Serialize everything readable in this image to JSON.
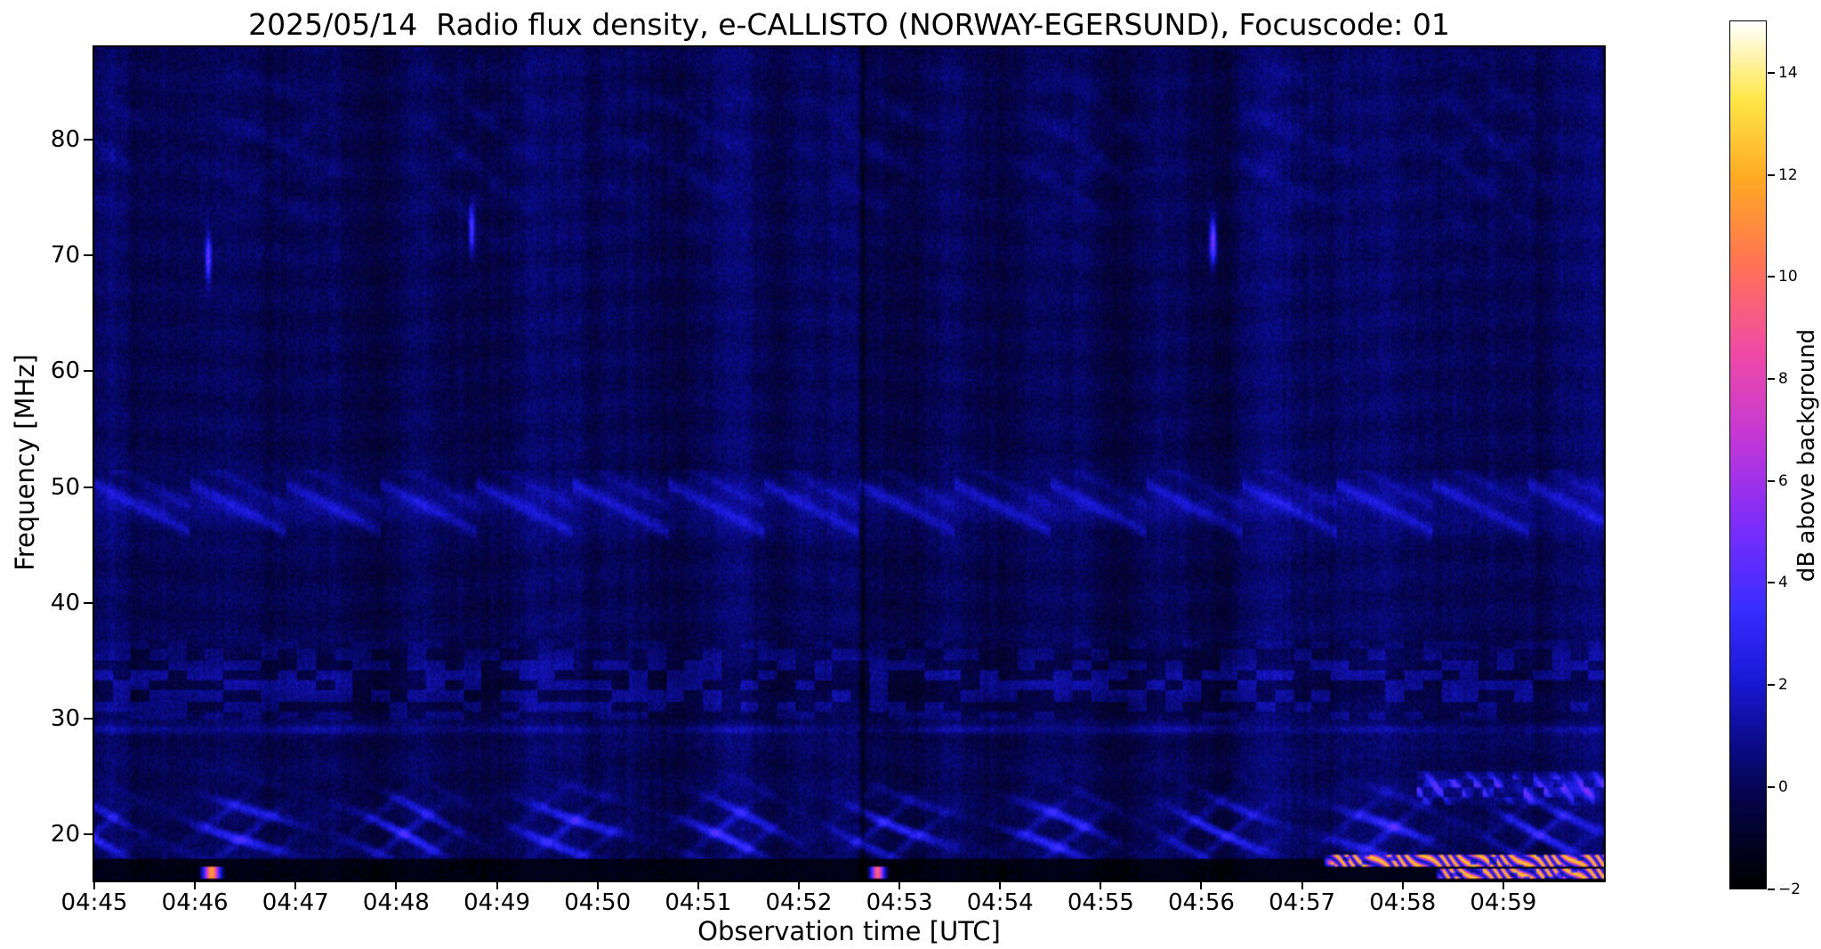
{
  "chart_data": {
    "type": "heatmap",
    "title": "2025/05/14  Radio flux density, e-CALLISTO (NORWAY-EGERSUND), Focuscode: 01",
    "xlabel": "Observation time [UTC]",
    "ylabel": "Frequency [MHz]",
    "colorbar_label": "dB above background",
    "time_range_utc": [
      "04:45:00",
      "05:00:00"
    ],
    "duration_seconds": 900,
    "x_ticks": [
      "04:45",
      "04:46",
      "04:47",
      "04:48",
      "04:49",
      "04:50",
      "04:51",
      "04:52",
      "04:53",
      "04:54",
      "04:55",
      "04:56",
      "04:57",
      "04:58",
      "04:59"
    ],
    "y_ticks": [
      20,
      30,
      40,
      50,
      60,
      70,
      80
    ],
    "freq_range_mhz": [
      16,
      88
    ],
    "value_range_db": [
      -2,
      15
    ],
    "colorbar_ticks": [
      -2,
      0,
      2,
      4,
      6,
      8,
      10,
      12,
      14
    ],
    "background_level_db": 0,
    "colormap": "black-blue-magenta-orange-yellow-white (gnuplot2-like)",
    "colormap_stops": [
      {
        "p": 0.0,
        "rgb": [
          0,
          0,
          0
        ]
      },
      {
        "p": 0.1,
        "rgb": [
          4,
          4,
          70
        ]
      },
      {
        "p": 0.16,
        "rgb": [
          10,
          10,
          130
        ]
      },
      {
        "p": 0.24,
        "rgb": [
          25,
          25,
          215
        ]
      },
      {
        "p": 0.32,
        "rgb": [
          55,
          45,
          255
        ]
      },
      {
        "p": 0.42,
        "rgb": [
          125,
          45,
          250
        ]
      },
      {
        "p": 0.52,
        "rgb": [
          195,
          55,
          215
        ]
      },
      {
        "p": 0.62,
        "rgb": [
          240,
          75,
          165
        ]
      },
      {
        "p": 0.72,
        "rgb": [
          255,
          115,
          85
        ]
      },
      {
        "p": 0.82,
        "rgb": [
          255,
          170,
          35
        ]
      },
      {
        "p": 0.91,
        "rgb": [
          255,
          230,
          70
        ]
      },
      {
        "p": 1.0,
        "rgb": [
          255,
          255,
          255
        ]
      }
    ],
    "bands": [
      {
        "name": "ionospheric-wavy-arcs",
        "pattern": "wavy",
        "f": [
          17.6,
          27.0
        ],
        "center": 20.3,
        "sigma": 2.1,
        "peak_db": 3.2,
        "wave_period_s": 46,
        "slope": 2.2,
        "mod_period_s": 97
      },
      {
        "name": "carrier-29mhz",
        "pattern": "line",
        "f": [
          28.2,
          30.0
        ],
        "center": 29.05,
        "sigma": 0.28,
        "peak_db": 1.2
      },
      {
        "name": "blocky-rfi-30-36mhz",
        "pattern": "blocky",
        "f": [
          29.8,
          36.8
        ],
        "center": 33.0,
        "sigma": 2.6,
        "peak_db": 1.0
      },
      {
        "name": "drifting-stripes-48mhz",
        "pattern": "drift",
        "f": [
          44.5,
          51.5
        ],
        "center": 48.4,
        "sigma": 1.5,
        "peak_db": 1.8,
        "drift_period_s": 57
      },
      {
        "name": "upper-faint-waves",
        "pattern": "wavy",
        "f": [
          68.0,
          88.0
        ],
        "center": 79.0,
        "sigma": 5.5,
        "peak_db": 0.55,
        "wave_period_s": 52,
        "slope": 1.3,
        "mod_period_s": 120
      },
      {
        "name": "bottom-dark-lane",
        "pattern": "flat-dark",
        "f": [
          16.0,
          17.8
        ],
        "peak_db": -1.3
      }
    ],
    "events": [
      {
        "name": "point-event-044608",
        "kind": "vline",
        "t_s": 68,
        "width_s": 1.2,
        "f": [
          67.5,
          72.0
        ],
        "peak_db": 4.5
      },
      {
        "name": "point-event-044845",
        "kind": "vline",
        "t_s": 225,
        "width_s": 1.2,
        "f": [
          70.0,
          74.5
        ],
        "peak_db": 4.5
      },
      {
        "name": "point-event-045607",
        "kind": "vline",
        "t_s": 667,
        "width_s": 1.4,
        "f": [
          69.0,
          73.5
        ],
        "peak_db": 5.5
      },
      {
        "name": "dark-column-045238",
        "kind": "dark-vline",
        "t_s": 458,
        "width_s": 1.2,
        "f": [
          16.0,
          88.0
        ],
        "peak_db": -1.3
      },
      {
        "name": "bright-dashes-23-25mhz-right",
        "kind": "patch",
        "t_from": 788,
        "t_to": 900,
        "f": [
          22.5,
          25.5
        ],
        "peak_db": 4.5
      },
      {
        "name": "bottom-burst-044610",
        "kind": "burst",
        "t_s": 70,
        "width_s": 3.0,
        "f": [
          16.1,
          17.2
        ],
        "peak_db": 12
      },
      {
        "name": "bottom-burst-045247",
        "kind": "burst",
        "t_s": 467,
        "width_s": 2.5,
        "f": [
          16.1,
          17.2
        ],
        "peak_db": 10
      },
      {
        "name": "rfi-strip-17.5mhz-from-045713",
        "kind": "strip",
        "t_from": 733,
        "t_to": 900,
        "f": [
          17.2,
          18.15
        ],
        "peak_db": 13
      },
      {
        "name": "rfi-strip-16.5mhz-from-045820",
        "kind": "strip",
        "t_from": 800,
        "t_to": 900,
        "f": [
          16.1,
          16.95
        ],
        "peak_db": 13
      }
    ]
  }
}
